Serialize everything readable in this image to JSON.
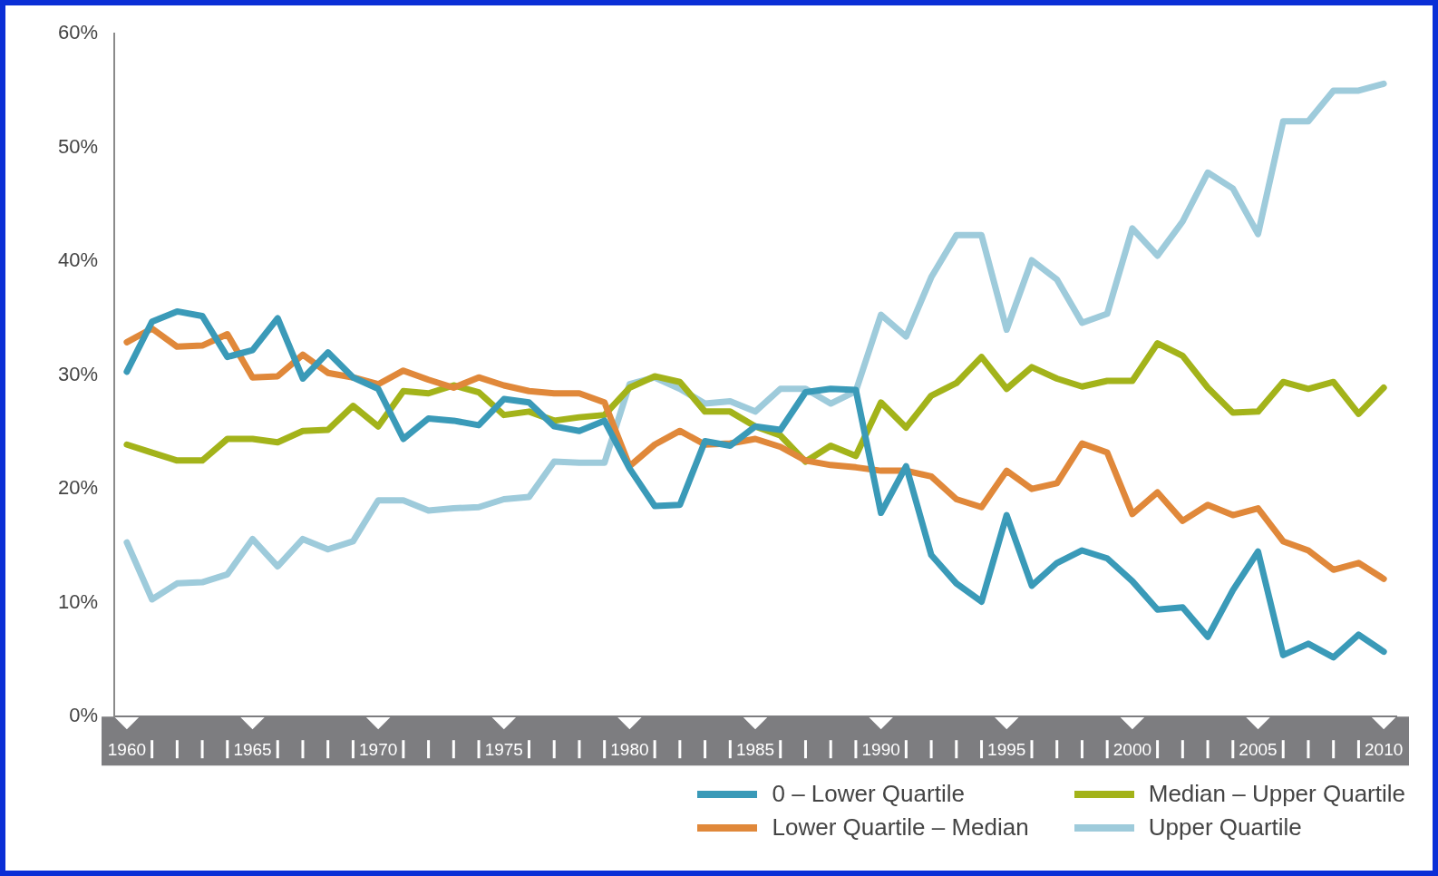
{
  "chart_data": {
    "type": "line",
    "x": [
      1960,
      1961,
      1962,
      1963,
      1964,
      1965,
      1966,
      1967,
      1968,
      1969,
      1970,
      1971,
      1972,
      1973,
      1974,
      1975,
      1976,
      1977,
      1978,
      1979,
      1980,
      1981,
      1982,
      1983,
      1984,
      1985,
      1986,
      1987,
      1988,
      1989,
      1990,
      1991,
      1992,
      1993,
      1994,
      1995,
      1996,
      1997,
      1998,
      1999,
      2000,
      2001,
      2002,
      2003,
      2004,
      2005,
      2006,
      2007,
      2008,
      2009,
      2010
    ],
    "xlim": [
      1959.5,
      2010.5
    ],
    "xticks": [
      1960,
      1965,
      1970,
      1975,
      1980,
      1985,
      1990,
      1995,
      2000,
      2005,
      2010
    ],
    "ylim": [
      0,
      60
    ],
    "yticks": [
      {
        "value": 0,
        "label": "0%"
      },
      {
        "value": 10,
        "label": "10%"
      },
      {
        "value": 20,
        "label": "20%"
      },
      {
        "value": 30,
        "label": "30%"
      },
      {
        "value": 40,
        "label": "40%"
      },
      {
        "value": 50,
        "label": "50%"
      },
      {
        "value": 60,
        "label": "60%"
      }
    ],
    "grid": false,
    "legend": "bottom right",
    "marker": "none",
    "line_style": "solid",
    "series": [
      {
        "name": "0 – Lower Quartile",
        "color": "#3a9ab8",
        "values": [
          30.3,
          34.7,
          35.6,
          35.2,
          31.6,
          32.2,
          35.0,
          29.7,
          32.0,
          29.8,
          28.8,
          24.4,
          26.2,
          26.0,
          25.6,
          27.9,
          27.6,
          25.5,
          25.1,
          26.0,
          21.8,
          18.5,
          18.6,
          24.2,
          23.8,
          25.5,
          25.2,
          28.5,
          28.8,
          28.7,
          17.9,
          22.0,
          14.2,
          11.7,
          10.1,
          17.7,
          11.5,
          13.5,
          14.6,
          13.9,
          11.9,
          9.4,
          9.6,
          7.0,
          11.1,
          14.5,
          5.4,
          6.4,
          5.2,
          7.2,
          5.7
        ]
      },
      {
        "name": "Lower Quartile – Median",
        "color": "#e0883a",
        "values": [
          32.9,
          34.1,
          32.5,
          32.6,
          33.6,
          29.8,
          29.9,
          31.8,
          30.2,
          29.8,
          29.2,
          30.4,
          29.6,
          28.9,
          29.8,
          29.1,
          28.6,
          28.4,
          28.4,
          27.6,
          22.0,
          23.9,
          25.1,
          23.9,
          24.0,
          24.4,
          23.7,
          22.5,
          22.1,
          21.9,
          21.6,
          21.6,
          21.1,
          19.1,
          18.4,
          21.6,
          20.0,
          20.5,
          24.0,
          23.2,
          17.8,
          19.7,
          17.2,
          18.6,
          17.7,
          18.3,
          15.4,
          14.6,
          12.9,
          13.5,
          12.1
        ]
      },
      {
        "name": "Median – Upper Quartile",
        "color": "#a3b31a",
        "values": [
          23.9,
          23.2,
          22.5,
          22.5,
          24.4,
          24.4,
          24.1,
          25.1,
          25.2,
          27.3,
          25.5,
          28.6,
          28.4,
          29.1,
          28.5,
          26.5,
          26.8,
          26.0,
          26.3,
          26.5,
          28.9,
          29.9,
          29.4,
          26.8,
          26.8,
          25.5,
          24.7,
          22.4,
          23.8,
          22.9,
          27.6,
          25.4,
          28.2,
          29.3,
          31.6,
          28.8,
          30.7,
          29.7,
          29.0,
          29.5,
          29.5,
          32.8,
          31.7,
          28.9,
          26.7,
          26.8,
          29.4,
          28.8,
          29.4,
          26.6,
          28.9
        ]
      },
      {
        "name": "Upper Quartile",
        "color": "#9ecbdb",
        "values": [
          15.3,
          10.3,
          11.7,
          11.8,
          12.5,
          15.6,
          13.2,
          15.6,
          14.7,
          15.4,
          19.0,
          19.0,
          18.1,
          18.3,
          18.4,
          19.1,
          19.3,
          22.4,
          22.3,
          22.3,
          29.2,
          29.8,
          28.8,
          27.5,
          27.7,
          26.8,
          28.8,
          28.8,
          27.5,
          28.6,
          35.3,
          33.4,
          38.6,
          42.3,
          42.3,
          34.0,
          40.1,
          38.4,
          34.6,
          35.4,
          42.9,
          40.5,
          43.5,
          47.8,
          46.4,
          42.4,
          52.3,
          52.3,
          55.0,
          55.0,
          55.6
        ]
      }
    ]
  }
}
